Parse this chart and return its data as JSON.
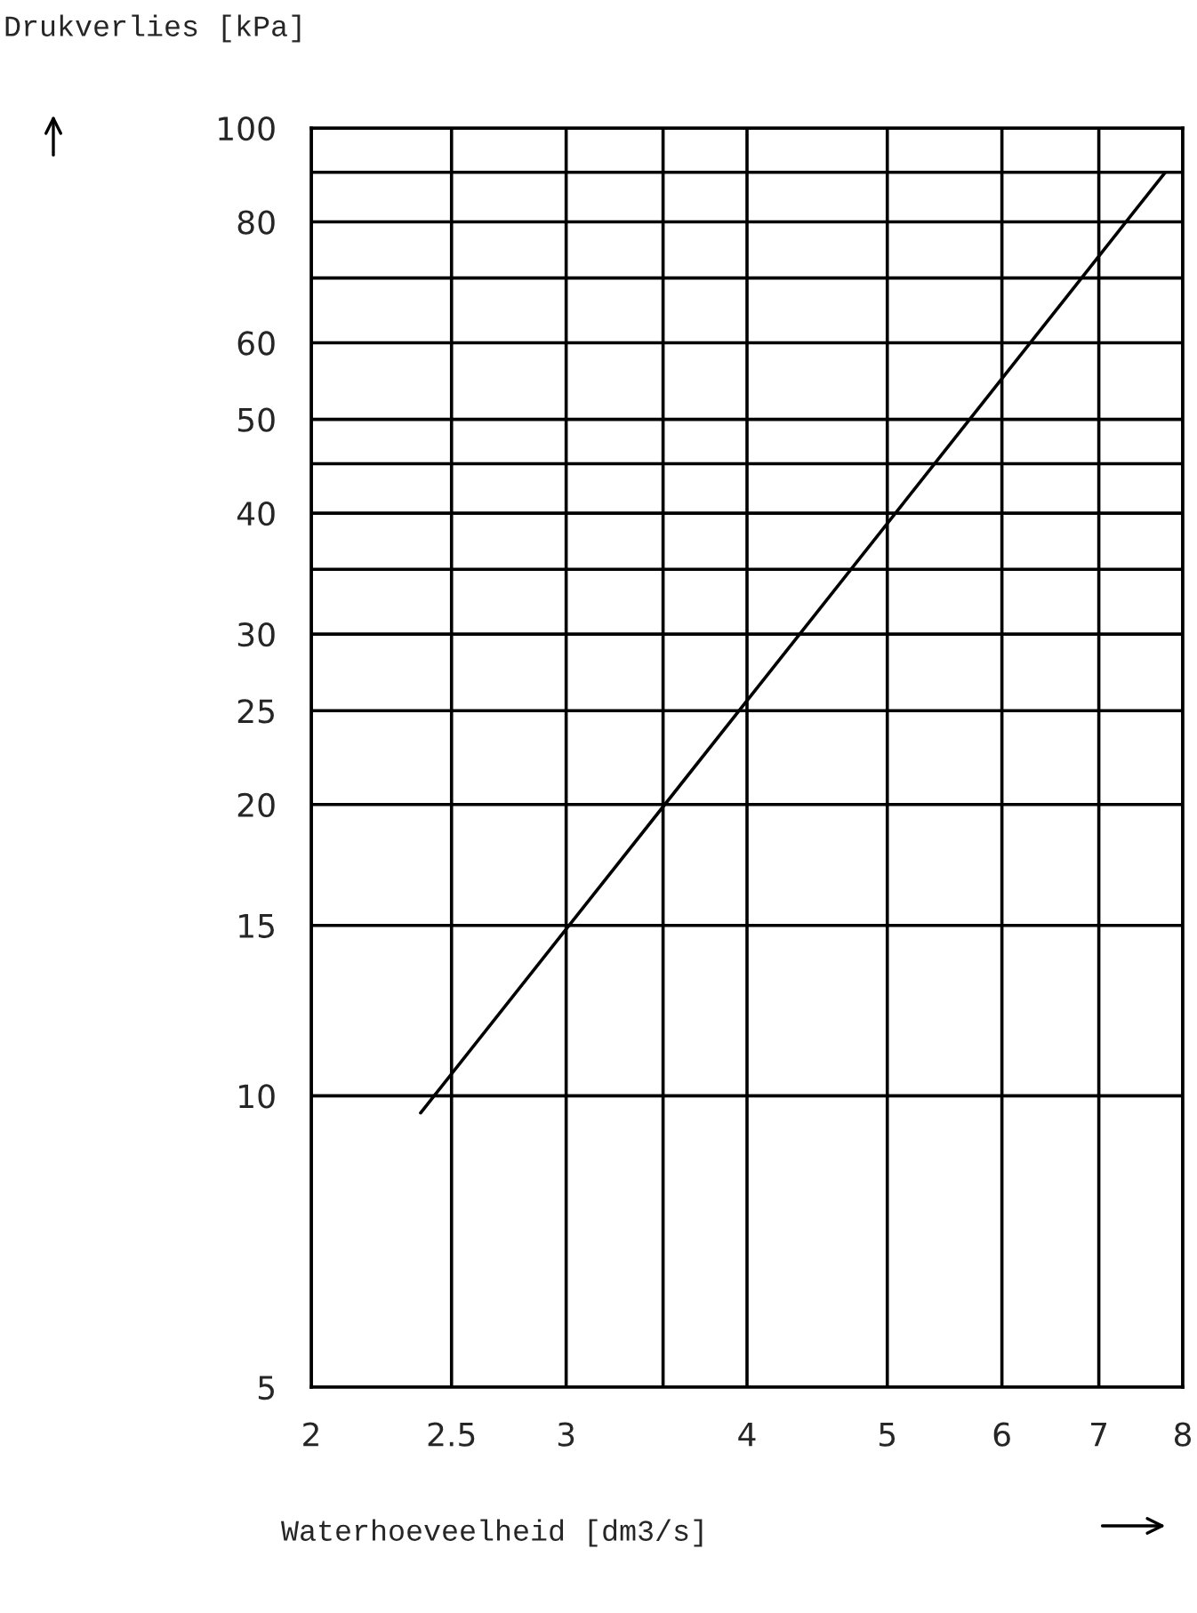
{
  "chart_data": {
    "type": "line",
    "xlabel": "Waterhoeveelheid [dm3/s]",
    "ylabel": "Drukverlies [kPa]",
    "log": "xy",
    "xlim": [
      2,
      8
    ],
    "ylim": [
      5,
      100
    ],
    "xticks": [
      2,
      2.5,
      3,
      {
        "value": 3.5,
        "label": null
      },
      4,
      5,
      6,
      7,
      8
    ],
    "yticks": [
      5,
      10,
      15,
      20,
      25,
      30,
      {
        "value": 35,
        "label": null
      },
      40,
      {
        "value": 45,
        "label": null
      },
      50,
      60,
      {
        "value": 70,
        "label": null
      },
      80,
      {
        "value": 90,
        "label": null
      },
      100
    ],
    "grid": true,
    "marker": "none",
    "line_style": "solid",
    "series": [
      {
        "color": "#000000",
        "x": [
          2.38,
          7.78
        ],
        "values": [
          9.6,
          90
        ]
      }
    ]
  }
}
